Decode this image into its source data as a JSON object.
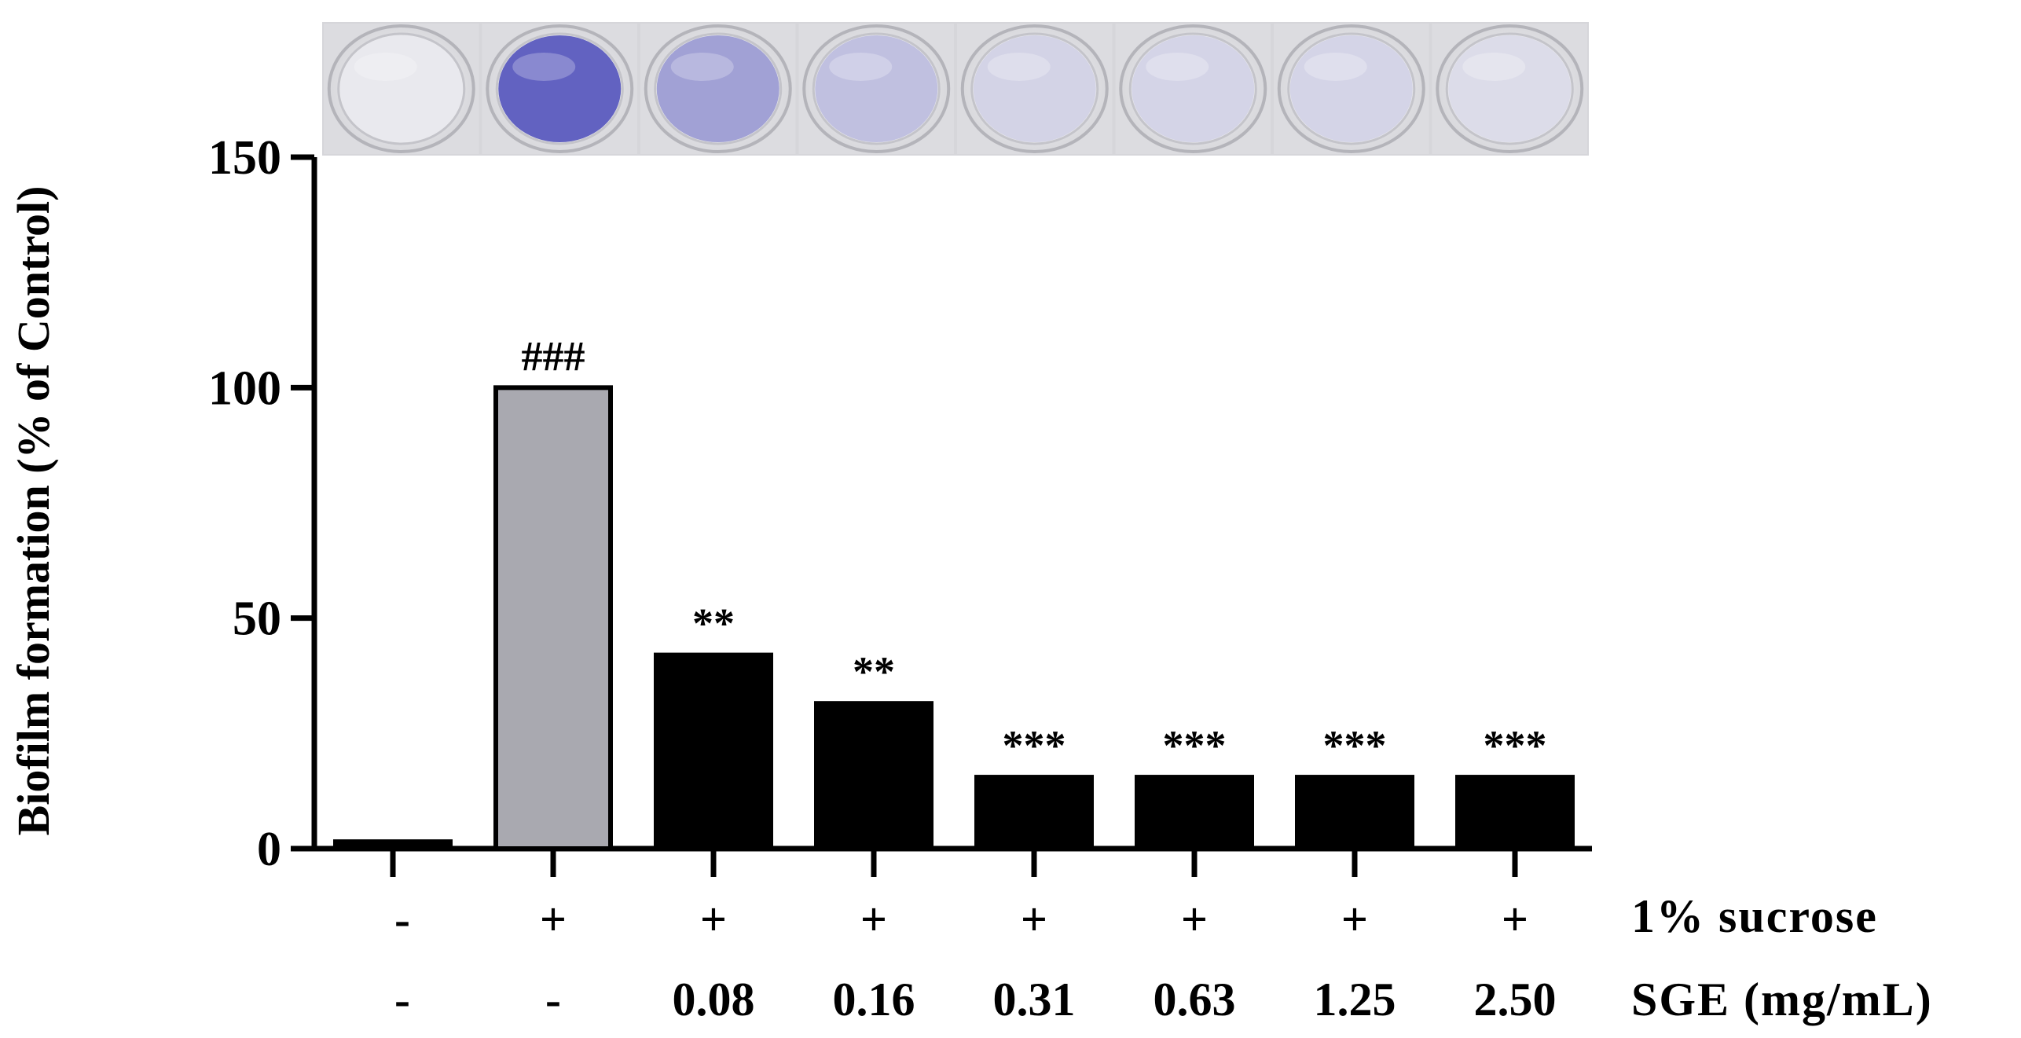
{
  "chart_data": {
    "type": "bar",
    "ylabel": "Biofilm formation (% of Control)",
    "ylim": [
      0,
      150
    ],
    "yticks": [
      "0",
      "50",
      "100",
      "150"
    ],
    "values": [
      1.5,
      100,
      42,
      31.5,
      15.5,
      15.5,
      15.5,
      15.5
    ],
    "significance": [
      "",
      "###",
      "**",
      "**",
      "***",
      "***",
      "***",
      "***"
    ],
    "bar_colors": [
      "#000000",
      "#a9a9b0",
      "#000000",
      "#000000",
      "#000000",
      "#000000",
      "#000000",
      "#000000"
    ],
    "sucrose_row": {
      "label": "1% sucrose",
      "values": [
        "-",
        "+",
        "+",
        "+",
        "+",
        "+",
        "+",
        "+"
      ]
    },
    "sge_row": {
      "label": "SGE (mg/mL)",
      "values": [
        "-",
        "-",
        "0.08",
        "0.16",
        "0.31",
        "0.63",
        "1.25",
        "2.50"
      ]
    },
    "well_stain": [
      0.02,
      1.0,
      0.55,
      0.32,
      0.18,
      0.17,
      0.17,
      0.12
    ]
  },
  "colors": {
    "well_stain": "#4a4ab8",
    "well_plate": "#d8d8dc"
  }
}
